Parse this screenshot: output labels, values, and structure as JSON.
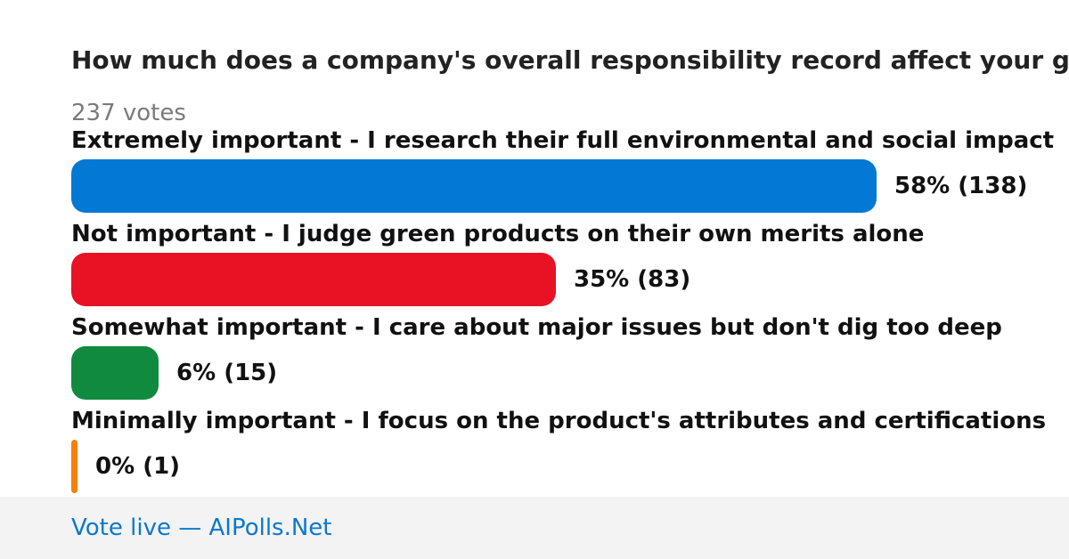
{
  "poll": {
    "question": "How much does a company's overall responsibility record affect your green product choices?",
    "total_votes": "237 votes"
  },
  "options": [
    {
      "label": "Extremely important - I research their full environmental and social impact",
      "percent_label": "58% (138)",
      "color": "#0378d4"
    },
    {
      "label": "Not important - I judge green products on their own merits alone",
      "percent_label": "35% (83)",
      "color": "#e81224"
    },
    {
      "label": "Somewhat important - I care about major issues but don't dig too deep",
      "percent_label": "6% (15)",
      "color": "#108a3e"
    },
    {
      "label": "Minimally important - I focus on the product's attributes and certifications",
      "percent_label": "0% (1)",
      "color": "#f7800a"
    }
  ],
  "chart_data": {
    "type": "bar",
    "orientation": "horizontal",
    "title": "How much does a company's overall responsibility record affect your green product choices?",
    "total_votes": 237,
    "categories": [
      "Extremely important - I research their full environmental and social impact",
      "Not important - I judge green products on their own merits alone",
      "Somewhat important - I care about major issues but don't dig too deep",
      "Minimally important - I focus on the product's attributes and certifications"
    ],
    "values": [
      138,
      83,
      15,
      1
    ],
    "percentages": [
      58,
      35,
      6,
      0
    ],
    "colors": [
      "#0378d4",
      "#e81224",
      "#108a3e",
      "#f7800a"
    ],
    "grid": false,
    "legend": "none"
  },
  "footer": {
    "link_text": "Vote live — AIPolls.Net"
  }
}
